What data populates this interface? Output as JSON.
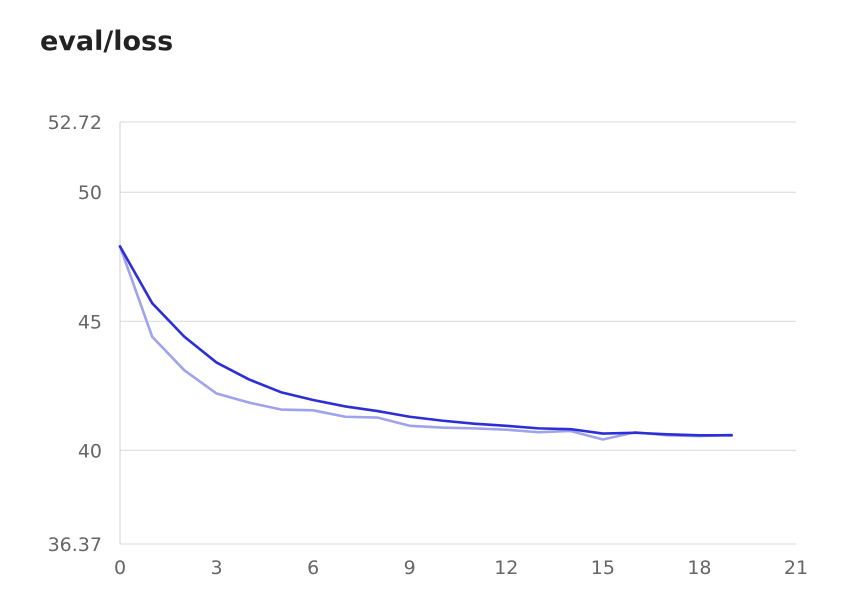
{
  "chart_data": {
    "type": "line",
    "title": "eval/loss",
    "xlabel": "",
    "ylabel": "",
    "xlim": [
      0,
      21
    ],
    "ylim": [
      36.37,
      52.72
    ],
    "x_ticks": [
      0,
      3,
      6,
      9,
      12,
      15,
      18,
      21
    ],
    "y_ticks": [
      36.37,
      40,
      45,
      50,
      52.72
    ],
    "y_tick_labels": [
      "36.37",
      "40",
      "45",
      "50",
      "52.72"
    ],
    "grid": "horizontal",
    "legend": "none",
    "series": [
      {
        "color": "#9fa2ec",
        "x": [
          0,
          1,
          2,
          3,
          4,
          5,
          6,
          7,
          8,
          9,
          10,
          11,
          12,
          13,
          14,
          15,
          16,
          17,
          18,
          19
        ],
        "y": [
          47.9,
          44.4,
          43.1,
          42.2,
          41.85,
          41.58,
          41.55,
          41.3,
          41.27,
          40.95,
          40.88,
          40.85,
          40.8,
          40.7,
          40.75,
          40.42,
          40.7,
          40.58,
          40.55,
          40.6
        ]
      },
      {
        "color": "#2b2fd4",
        "x": [
          0,
          1,
          2,
          3,
          4,
          5,
          6,
          7,
          8,
          9,
          10,
          11,
          12,
          13,
          14,
          15,
          16,
          17,
          18,
          19
        ],
        "y": [
          47.9,
          45.7,
          44.4,
          43.4,
          42.75,
          42.25,
          41.95,
          41.7,
          41.52,
          41.3,
          41.15,
          41.03,
          40.95,
          40.85,
          40.82,
          40.65,
          40.68,
          40.62,
          40.58,
          40.58
        ]
      }
    ]
  }
}
